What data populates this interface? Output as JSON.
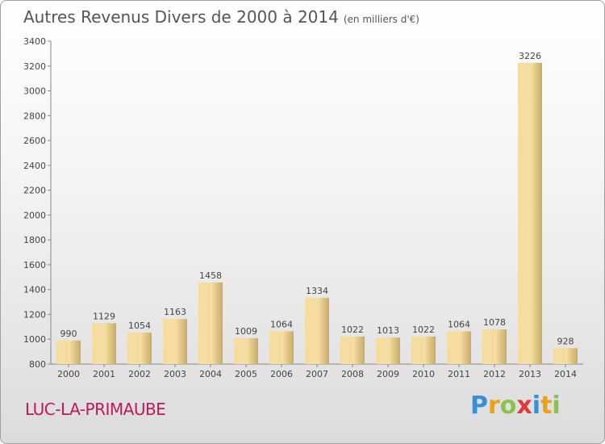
{
  "header": {
    "title": "Autres Revenus Divers de 2000 à 2014",
    "unit": "(en milliers d'€)"
  },
  "footer": {
    "town": "LUC-LA-PRIMAUBE",
    "logo_letters": [
      {
        "ch": "P",
        "color": "#3a8fd1"
      },
      {
        "ch": "r",
        "color": "#e8a21a"
      },
      {
        "ch": "o",
        "color": "#8bc34a"
      },
      {
        "ch": "x",
        "color": "#e53935"
      },
      {
        "ch": "i",
        "color": "#3a8fd1"
      },
      {
        "ch": "t",
        "color": "#e8a21a"
      },
      {
        "ch": "i",
        "color": "#8bc34a"
      }
    ]
  },
  "chart_data": {
    "type": "bar",
    "title": "Autres Revenus Divers de 2000 à 2014",
    "subtitle": "(en milliers d'€)",
    "categories": [
      "2000",
      "2001",
      "2002",
      "2003",
      "2004",
      "2005",
      "2006",
      "2007",
      "2008",
      "2009",
      "2010",
      "2011",
      "2012",
      "2013",
      "2014"
    ],
    "values": [
      990,
      1129,
      1054,
      1163,
      1458,
      1009,
      1064,
      1334,
      1022,
      1013,
      1022,
      1064,
      1078,
      3226,
      928
    ],
    "ylim": [
      800,
      3400
    ],
    "yticks": [
      800,
      1000,
      1200,
      1400,
      1600,
      1800,
      2000,
      2200,
      2400,
      2600,
      2800,
      3000,
      3200,
      3400
    ],
    "grid": false,
    "bar_color_light": "#f5dca0",
    "bar_color_dark": "#c8ab66"
  }
}
